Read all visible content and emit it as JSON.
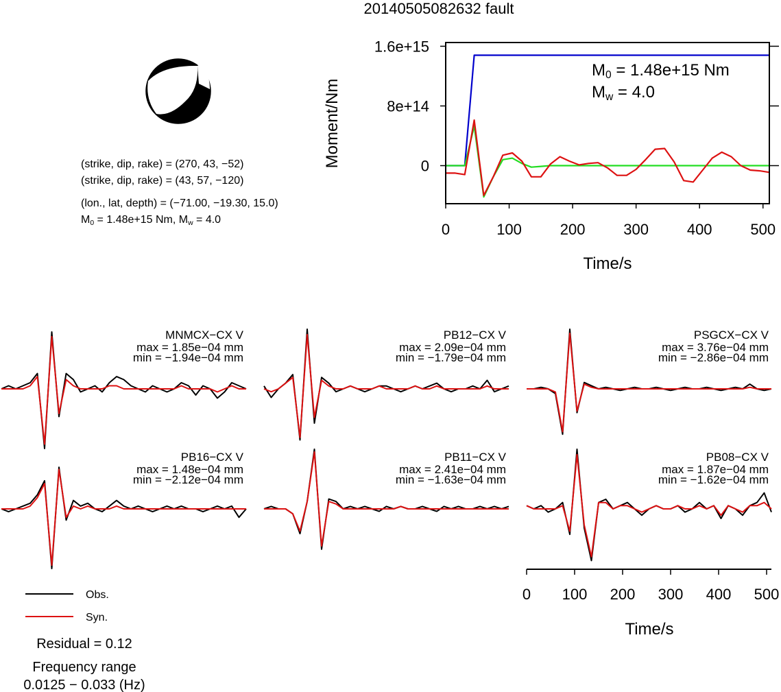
{
  "title": "20140505082632 fault",
  "focal_mechanism": {
    "lines": [
      "(strike, dip, rake) = (270, 43, −52)",
      "(strike, dip, rake) = (43, 57, −120)",
      "(lon., lat, depth) = (−71.00, −19.30, 15.0)"
    ],
    "moment_line": [
      "M",
      "0",
      " = 1.48e+15 Nm, M",
      "w",
      " = 4.0"
    ]
  },
  "notes": [
    "Residual = 0.12",
    "Frequency range",
    "0.0125 − 0.033 (Hz)"
  ],
  "chart_data": [
    {
      "type": "line",
      "xlabel": "Time/s",
      "ylabel": "Moment/Nm",
      "x": [
        0,
        15,
        30,
        45,
        60,
        75,
        90,
        105,
        120,
        135,
        150,
        165,
        180,
        195,
        210,
        225,
        240,
        255,
        270,
        285,
        300,
        315,
        330,
        345,
        360,
        375,
        390,
        405,
        420,
        435,
        450,
        465,
        480,
        495,
        510
      ],
      "xlim": [
        0,
        510
      ],
      "xticks": [
        0,
        100,
        200,
        300,
        400,
        500
      ],
      "ylim": [
        -510000000000000.0,
        1650000000000000.0
      ],
      "yticks": [
        0,
        {
          "value": 800000000000000.0,
          "label": "8e+14"
        },
        {
          "value": 1600000000000000.0,
          "label": "1.6e+15"
        }
      ],
      "series": [
        {
          "color": "#0000cc",
          "values": [
            0,
            0,
            0,
            1480000000000000.0,
            1480000000000000.0,
            1480000000000000.0,
            1480000000000000.0,
            1480000000000000.0,
            1480000000000000.0,
            1480000000000000.0,
            1480000000000000.0,
            1480000000000000.0,
            1480000000000000.0,
            1480000000000000.0,
            1480000000000000.0,
            1480000000000000.0,
            1480000000000000.0,
            1480000000000000.0,
            1480000000000000.0,
            1480000000000000.0,
            1480000000000000.0,
            1480000000000000.0,
            1480000000000000.0,
            1480000000000000.0,
            1480000000000000.0,
            1480000000000000.0,
            1480000000000000.0,
            1480000000000000.0,
            1480000000000000.0,
            1480000000000000.0,
            1480000000000000.0,
            1480000000000000.0,
            1480000000000000.0,
            1480000000000000.0,
            1480000000000000.0
          ]
        },
        {
          "color": "#22dd22",
          "values": [
            0,
            0,
            0,
            530000000000000.0,
            -420000000000000.0,
            -150000000000000.0,
            80000000000000.0,
            100000000000000.0,
            30000000000000.0,
            -20000000000000.0,
            -10000000000000.0,
            0,
            0,
            0,
            0,
            0,
            0,
            0,
            0,
            0,
            0,
            0,
            0,
            0,
            0,
            0,
            0,
            0,
            0,
            0,
            0,
            0,
            0,
            0,
            0
          ]
        },
        {
          "color": "#dd1111",
          "values": [
            -100000000000000.0,
            -100000000000000.0,
            -120000000000000.0,
            610000000000000.0,
            -400000000000000.0,
            -150000000000000.0,
            140000000000000.0,
            170000000000000.0,
            60000000000000.0,
            -150000000000000.0,
            -150000000000000.0,
            20000000000000.0,
            120000000000000.0,
            60000000000000.0,
            10000000000000.0,
            30000000000000.0,
            40000000000000.0,
            -30000000000000.0,
            -130000000000000.0,
            -130000000000000.0,
            -50000000000000.0,
            80000000000000.0,
            220000000000000.0,
            230000000000000.0,
            50000000000000.0,
            -200000000000000.0,
            -220000000000000.0,
            -60000000000000.0,
            100000000000000.0,
            180000000000000.0,
            120000000000000.0,
            0,
            -60000000000000.0,
            -70000000000000.0,
            -90000000000000.0
          ]
        }
      ],
      "annotations": [
        [
          "M",
          "0",
          " = 1.48e+15 Nm"
        ],
        [
          "M",
          "w",
          " = 4.0"
        ]
      ]
    },
    {
      "type": "waveform",
      "xlabel": "Time/s",
      "x": [
        0,
        15,
        30,
        45,
        60,
        75,
        90,
        105,
        120,
        135,
        150,
        165,
        180,
        195,
        210,
        225,
        240,
        255,
        270,
        285,
        300,
        315,
        330,
        345,
        360,
        375,
        390,
        405,
        420,
        435,
        450,
        465,
        480,
        495,
        510
      ],
      "xlim": [
        0,
        510
      ],
      "xticks": [
        0,
        100,
        200,
        300,
        400,
        500
      ],
      "panels": [
        {
          "title": "MNMCX−CX V",
          "max_label": "max = 1.85e−04 mm",
          "min_label": "min = −1.94e−04 mm",
          "series": [
            {
              "name": "Obs.",
              "color": "#000000",
              "values": [
                0,
                1e-05,
                0,
                1e-05,
                2e-05,
                5e-05,
                -0.000194,
                0.000185,
                -9e-05,
                5e-05,
                3e-05,
                -1e-05,
                0,
                1e-05,
                -1e-05,
                2e-05,
                4e-05,
                3e-05,
                1e-05,
                0,
                -1e-05,
                1e-05,
                0,
                -1e-05,
                0,
                2e-05,
                1e-05,
                -2e-05,
                1e-05,
                0,
                -3e-05,
                -1e-05,
                2e-05,
                1e-05,
                0
              ]
            },
            {
              "name": "Syn.",
              "color": "#dd1111",
              "values": [
                0,
                0,
                0,
                0,
                1e-05,
                4e-05,
                -0.00018,
                0.00017,
                -8e-05,
                3e-05,
                1e-05,
                0,
                0,
                0,
                0,
                1e-05,
                1e-05,
                0,
                0,
                0,
                0,
                0,
                0,
                0,
                0,
                1e-05,
                0,
                0,
                0,
                0,
                -1e-05,
                0,
                1e-05,
                0,
                0
              ]
            }
          ]
        },
        {
          "title": "PB12−CX V",
          "max_label": "max = 2.09e−04 mm",
          "min_label": "min = −1.79e−04 mm",
          "series": [
            {
              "color": "#000000",
              "values": [
                1e-05,
                -3e-05,
                0,
                2e-05,
                5e-05,
                -0.000179,
                0.000209,
                -0.00012,
                4e-05,
                2e-05,
                -1e-05,
                0,
                1e-05,
                0,
                -1e-05,
                0,
                1e-05,
                1e-05,
                0,
                -1e-05,
                0,
                1e-05,
                0,
                1e-05,
                2e-05,
                0,
                -1e-05,
                0,
                0,
                1e-05,
                0,
                3e-05,
                -1e-05,
                0,
                1e-05
              ]
            },
            {
              "color": "#dd1111",
              "values": [
                0,
                -1e-05,
                0,
                2e-05,
                4e-05,
                -0.00017,
                0.00019,
                -0.0001,
                3e-05,
                1e-05,
                0,
                0,
                1e-05,
                0,
                0,
                0,
                1e-05,
                0,
                0,
                0,
                0,
                1e-05,
                0,
                0,
                1e-05,
                0,
                0,
                0,
                0,
                0,
                0,
                1e-05,
                0,
                0,
                0
              ]
            }
          ]
        },
        {
          "title": "PSGCX−CX V",
          "max_label": "max = 3.76e−04 mm",
          "min_label": "min = −2.86e−04 mm",
          "series": [
            {
              "color": "#000000",
              "values": [
                0,
                0,
                1e-05,
                0,
                -3e-05,
                -0.000286,
                0.000376,
                -0.00015,
                4e-05,
                2e-05,
                0,
                1e-05,
                0,
                -1e-05,
                0,
                1e-05,
                0,
                0,
                1e-05,
                0,
                -1e-05,
                0,
                1e-05,
                0,
                0,
                1e-05,
                0,
                -1e-05,
                0,
                1e-05,
                0,
                3e-05,
                0,
                -1e-05,
                0
              ]
            },
            {
              "color": "#dd1111",
              "values": [
                0,
                0,
                0,
                0,
                -2e-05,
                -0.00027,
                0.00035,
                -0.00014,
                3e-05,
                1e-05,
                0,
                0,
                0,
                0,
                0,
                0,
                0,
                0,
                0,
                0,
                0,
                0,
                0,
                0,
                0,
                0,
                0,
                0,
                0,
                0,
                0,
                1e-05,
                0,
                0,
                0
              ]
            }
          ]
        },
        {
          "title": "PB16−CX V",
          "max_label": "max = 1.48e−04 mm",
          "min_label": "min = −2.12e−04 mm",
          "series": [
            {
              "color": "#000000",
              "values": [
                0,
                -1e-05,
                0,
                1e-05,
                2e-05,
                5e-05,
                0.0001,
                -0.000212,
                0.000148,
                -4e-05,
                3e-05,
                1e-05,
                2e-05,
                0,
                -1e-05,
                1e-05,
                3e-05,
                1e-05,
                0,
                1e-05,
                0,
                -1e-05,
                0,
                1e-05,
                0,
                1e-05,
                0,
                0,
                -1e-05,
                0,
                1e-05,
                0,
                1e-05,
                -3e-05,
                0
              ]
            },
            {
              "color": "#dd1111",
              "values": [
                0,
                0,
                0,
                0,
                1e-05,
                4e-05,
                9e-05,
                -0.0002,
                0.00014,
                -3e-05,
                1e-05,
                0,
                1e-05,
                0,
                0,
                0,
                1e-05,
                0,
                0,
                0,
                0,
                0,
                0,
                0,
                0,
                0,
                0,
                0,
                0,
                0,
                0,
                0,
                0,
                0,
                0
              ]
            }
          ]
        },
        {
          "title": "PB11−CX V",
          "max_label": "max = 2.41e−04 mm",
          "min_label": "min = −1.63e−04 mm",
          "series": [
            {
              "color": "#000000",
              "values": [
                0,
                1e-05,
                0,
                0,
                -2e-05,
                -0.0001,
                3e-05,
                0.000241,
                -0.000163,
                4e-05,
                3e-05,
                0,
                1e-05,
                0,
                1e-05,
                0,
                -1e-05,
                1e-05,
                0,
                1e-05,
                0,
                0,
                1e-05,
                0,
                -1e-05,
                1e-05,
                0,
                1e-05,
                0,
                0,
                1e-05,
                0,
                1e-05,
                0,
                1e-05
              ]
            },
            {
              "color": "#dd1111",
              "values": [
                0,
                0,
                0,
                0,
                -2e-05,
                -9e-05,
                3e-05,
                0.00023,
                -0.00015,
                3e-05,
                2e-05,
                0,
                0,
                0,
                0,
                0,
                0,
                0,
                0,
                1e-05,
                0,
                0,
                0,
                0,
                0,
                0,
                0,
                0,
                0,
                0,
                0,
                0,
                0,
                0,
                0
              ]
            }
          ]
        },
        {
          "title": "PB08−CX V",
          "max_label": "max = 1.87e−04 mm",
          "min_label": "min = −1.62e−04 mm",
          "series": [
            {
              "color": "#000000",
              "values": [
                1e-05,
                0,
                1e-05,
                -1e-05,
                0,
                2e-05,
                -8e-05,
                0.000187,
                -6e-05,
                -0.000162,
                2e-05,
                3e-05,
                0,
                1e-05,
                2e-05,
                0,
                -2e-05,
                0,
                1e-05,
                0,
                0,
                1e-05,
                -1e-05,
                0,
                2e-05,
                0,
                1e-05,
                -3e-05,
                1e-05,
                0,
                -2e-05,
                1e-05,
                2e-05,
                5e-05,
                -1e-05
              ]
            },
            {
              "color": "#dd1111",
              "values": [
                1e-05,
                0,
                0,
                0,
                0,
                1e-05,
                -7e-05,
                0.00017,
                -5e-05,
                -0.00015,
                2e-05,
                2e-05,
                0,
                1e-05,
                1e-05,
                0,
                -1e-05,
                0,
                1e-05,
                0,
                0,
                1e-05,
                0,
                0,
                1e-05,
                0,
                1e-05,
                -2e-05,
                1e-05,
                0,
                -1e-05,
                1e-05,
                1e-05,
                2e-05,
                0
              ]
            }
          ]
        }
      ]
    }
  ]
}
